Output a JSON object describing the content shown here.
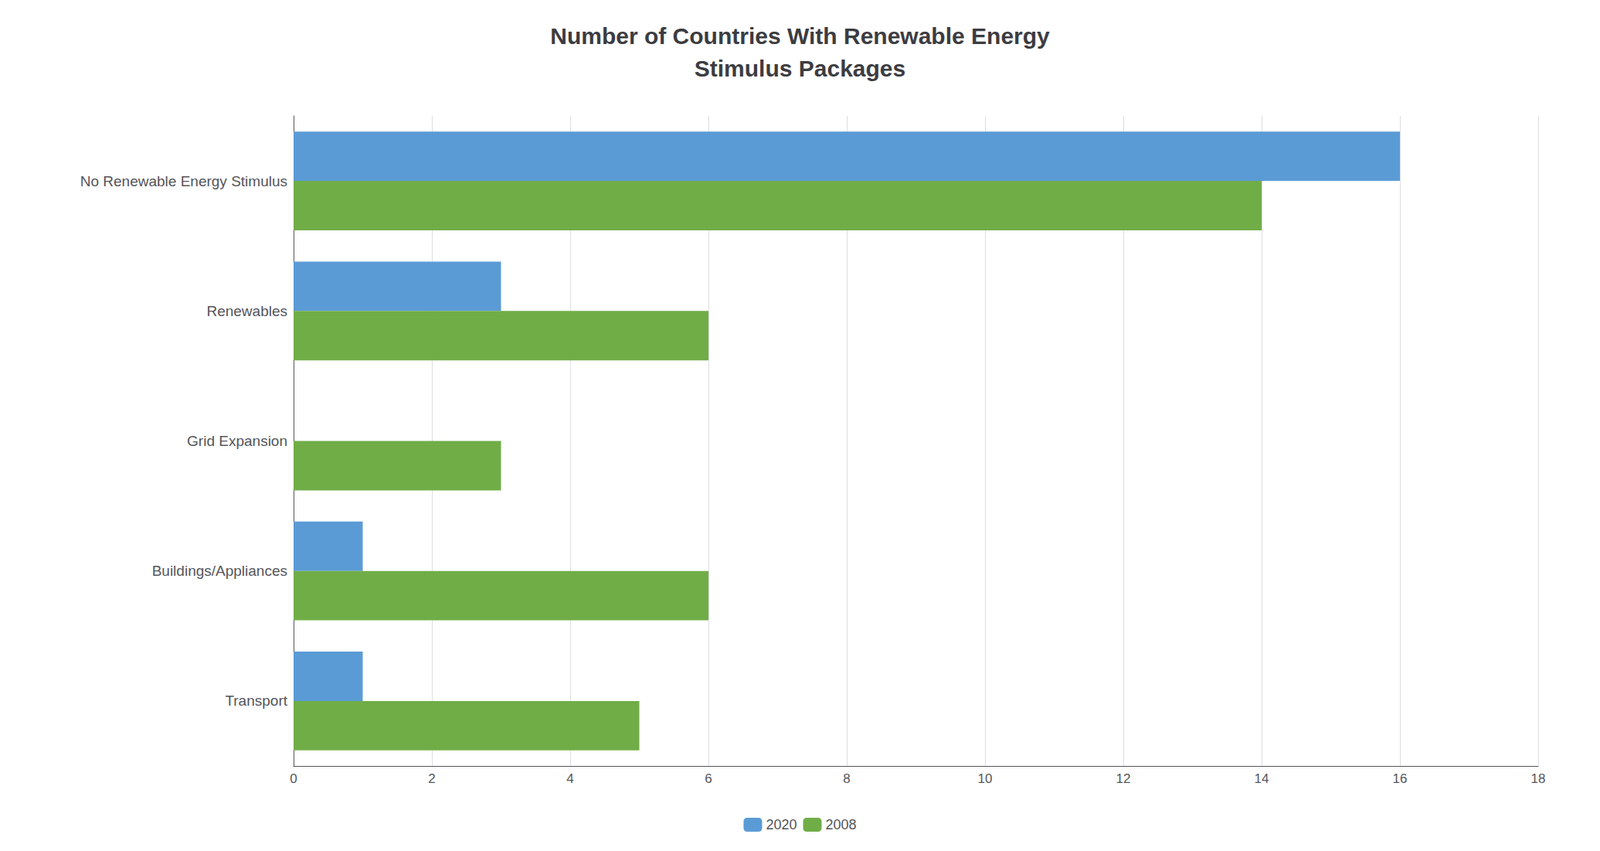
{
  "chart_data": {
    "type": "bar",
    "orientation": "horizontal",
    "title": "Number of Countries With Renewable Energy\nStimulus Packages",
    "categories": [
      "No Renewable Energy Stimulus",
      "Renewables",
      "Grid Expansion",
      "Buildings/Appliances",
      "Transport"
    ],
    "series": [
      {
        "name": "2020",
        "color": "#5B9BD5",
        "values": [
          16,
          3,
          0,
          1,
          1
        ]
      },
      {
        "name": "2008",
        "color": "#70AD47",
        "values": [
          14,
          6,
          3,
          6,
          5
        ]
      }
    ],
    "xlim": [
      0,
      18
    ],
    "xticks": [
      0,
      2,
      4,
      6,
      8,
      10,
      12,
      14,
      16,
      18
    ],
    "grid": true,
    "legend": "bottom"
  }
}
